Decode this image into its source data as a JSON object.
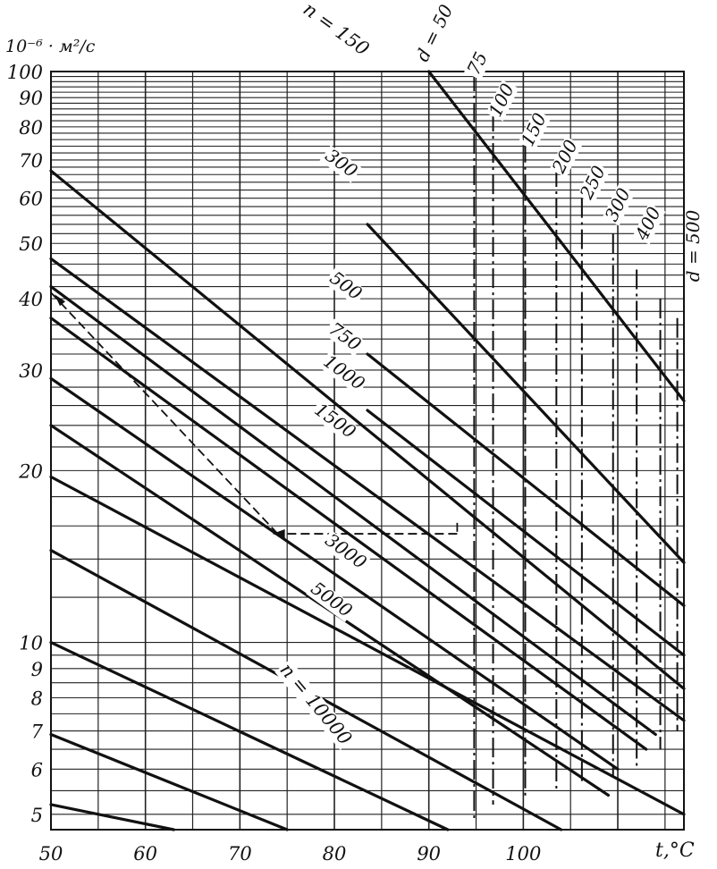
{
  "chart_data": {
    "type": "line",
    "title": "",
    "y_unit_label": "10⁻⁶ · м²/с",
    "x_unit_label": "t,°C",
    "xlim": [
      50,
      117
    ],
    "ylim": [
      4.7,
      100
    ],
    "y_scale": "log",
    "x_ticks": [
      {
        "v": 50,
        "label": "50"
      },
      {
        "v": 60,
        "label": "60"
      },
      {
        "v": 70,
        "label": "70"
      },
      {
        "v": 80,
        "label": "80"
      },
      {
        "v": 90,
        "label": "90"
      },
      {
        "v": 100,
        "label": "100"
      }
    ],
    "y_ticks": [
      {
        "v": 100,
        "label": "100"
      },
      {
        "v": 90,
        "label": "90"
      },
      {
        "v": 80,
        "label": "80"
      },
      {
        "v": 70,
        "label": "70"
      },
      {
        "v": 60,
        "label": "60"
      },
      {
        "v": 50,
        "label": "50"
      },
      {
        "v": 40,
        "label": "40"
      },
      {
        "v": 30,
        "label": "30"
      },
      {
        "v": 20,
        "label": "20"
      },
      {
        "v": 10,
        "label": "10"
      },
      {
        "v": 9,
        "label": "9"
      },
      {
        "v": 8,
        "label": "8"
      },
      {
        "v": 7,
        "label": "7"
      },
      {
        "v": 6,
        "label": "6"
      },
      {
        "v": 5,
        "label": "5"
      }
    ],
    "grid": true,
    "speed_lines": [
      {
        "label": "n = 150",
        "x1": 90,
        "y1": 100,
        "x2": 117,
        "y2": 26.5
      },
      {
        "label": "300",
        "x1": 83.5,
        "y1": 54,
        "x2": 117,
        "y2": 13.8
      },
      {
        "label": "500",
        "x1": 83.5,
        "y1": 32,
        "x2": 117,
        "y2": 11.6
      },
      {
        "label": "750",
        "x1": 83.5,
        "y1": 25.5,
        "x2": 117,
        "y2": 9.5
      },
      {
        "label": "1000",
        "x1": 50,
        "y1": 67,
        "x2": 117,
        "y2": 8.3
      },
      {
        "label": "1500",
        "x1": 50,
        "y1": 47,
        "x2": 117,
        "y2": 7.3
      },
      {
        "label": "",
        "x1": 50,
        "y1": 42,
        "x2": 114,
        "y2": 6.9
      },
      {
        "label": "",
        "x1": 50,
        "y1": 37,
        "x2": 113,
        "y2": 6.5
      },
      {
        "label": "",
        "x1": 50,
        "y1": 29,
        "x2": 110,
        "y2": 6.0
      },
      {
        "label": "3000",
        "x1": 50,
        "y1": 24,
        "x2": 109,
        "y2": 5.4
      },
      {
        "label": "5000",
        "x1": 50,
        "y1": 19.5,
        "x2": 117,
        "y2": 5.0
      },
      {
        "label": "",
        "x1": 50,
        "y1": 14.5,
        "x2": 104,
        "y2": 4.7
      },
      {
        "label": "n = 10000",
        "x1": 50,
        "y1": 10,
        "x2": 92,
        "y2": 4.7
      },
      {
        "label": "",
        "x1": 50,
        "y1": 6.9,
        "x2": 75,
        "y2": 4.7
      },
      {
        "label": "",
        "x1": 50,
        "y1": 5.2,
        "x2": 63,
        "y2": 4.7
      }
    ],
    "diameter_lines": [
      {
        "label": "d = 50",
        "x": 94.8,
        "y_top": 100,
        "y_bottom": 4.9
      },
      {
        "label": "75",
        "x": 96.8,
        "y_top": 85,
        "y_bottom": 5.2
      },
      {
        "label": "100",
        "x": 100.2,
        "y_top": 75,
        "y_bottom": 5.3
      },
      {
        "label": "150",
        "x": 103.5,
        "y_top": 68,
        "y_bottom": 5.5
      },
      {
        "label": "200",
        "x": 106.2,
        "y_top": 60,
        "y_bottom": 5.7
      },
      {
        "label": "250",
        "x": 109.5,
        "y_top": 52,
        "y_bottom": 5.8
      },
      {
        "label": "300",
        "x": 112.0,
        "y_top": 45,
        "y_bottom": 6.0
      },
      {
        "label": "400",
        "x": 114.5,
        "y_top": 40,
        "y_bottom": 6.5
      },
      {
        "label": "d = 500",
        "x": 116.3,
        "y_top": 37,
        "y_bottom": 7.0
      }
    ],
    "example_path": [
      {
        "x": 93,
        "y": 16.2
      },
      {
        "x": 93,
        "y": 15.5
      },
      {
        "x": 74,
        "y": 15.5
      },
      {
        "x": 50,
        "y": 41
      }
    ]
  }
}
